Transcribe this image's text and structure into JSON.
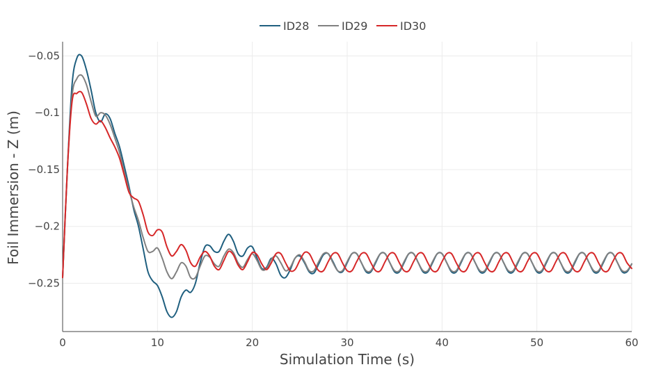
{
  "chart_data": {
    "type": "line",
    "xlabel": "Simulation Time (s)",
    "ylabel": "Foil Immersion - Z (m)",
    "xlim": [
      0,
      60
    ],
    "ylim": [
      -0.2925,
      -0.0375
    ],
    "x_ticks": [
      0,
      10,
      20,
      30,
      40,
      50,
      60
    ],
    "x_tick_labels": [
      "0",
      "10",
      "20",
      "30",
      "40",
      "50",
      "60"
    ],
    "y_ticks": [
      -0.05,
      -0.1,
      -0.15,
      -0.2,
      -0.25
    ],
    "y_tick_labels": [
      "−0.05",
      "−0.1",
      "−0.15",
      "−0.2",
      "−0.25"
    ],
    "grid": true,
    "legend_position": "top-center",
    "series": [
      {
        "name": "ID28",
        "color": "#1f5f7f",
        "x": [
          0,
          0.5,
          1.0,
          1.5,
          2.0,
          2.5,
          3.0,
          3.5,
          4.0,
          4.5,
          5.0,
          5.5,
          6.0,
          6.5,
          7.0,
          7.5,
          8.0,
          8.5,
          9.0,
          9.5,
          10.0,
          10.5,
          11.0,
          11.5,
          12.0,
          12.5,
          13.0,
          13.5,
          14.0,
          14.5,
          15.0,
          15.5,
          16.0,
          16.5,
          17.0,
          17.5,
          18.0,
          18.5,
          19.0,
          19.5,
          20.0,
          20.5,
          21.0,
          21.5,
          22.0,
          22.5,
          23.0,
          23.5,
          24.0,
          24.5,
          25.0,
          25.5,
          26.0,
          26.5,
          27.0,
          27.5,
          28.0,
          28.5,
          29.0,
          29.5,
          30.0,
          30.5,
          31.0,
          31.5,
          32.0,
          32.5,
          33.0,
          33.5,
          34.0,
          34.5,
          35.0,
          35.5,
          36.0,
          36.5,
          37.0,
          37.5,
          38.0,
          38.5,
          39.0,
          39.5,
          40.0,
          40.5,
          41.0,
          41.5,
          42.0,
          42.5,
          43.0,
          43.5,
          44.0,
          44.5,
          45.0,
          45.5,
          46.0,
          46.5,
          47.0,
          47.5,
          48.0,
          48.5,
          49.0,
          49.5,
          50.0,
          50.5,
          51.0,
          51.5,
          52.0,
          52.5,
          53.0,
          53.5,
          54.0,
          54.5,
          55.0,
          55.5,
          56.0,
          56.5,
          57.0,
          57.5,
          58.0,
          58.5,
          59.0,
          59.5,
          60.0
        ],
        "y": [
          -0.245,
          -0.15,
          -0.075,
          -0.052,
          -0.05,
          -0.062,
          -0.08,
          -0.1,
          -0.108,
          -0.101,
          -0.105,
          -0.118,
          -0.13,
          -0.147,
          -0.165,
          -0.185,
          -0.2,
          -0.22,
          -0.24,
          -0.248,
          -0.252,
          -0.262,
          -0.275,
          -0.28,
          -0.275,
          -0.262,
          -0.256,
          -0.258,
          -0.25,
          -0.232,
          -0.218,
          -0.217,
          -0.222,
          -0.222,
          -0.213,
          -0.207,
          -0.213,
          -0.224,
          -0.226,
          -0.219,
          -0.218,
          -0.228,
          -0.237,
          -0.236,
          -0.228,
          -0.233,
          -0.243,
          -0.245,
          -0.238,
          -0.228,
          -0.226,
          -0.232,
          -0.24,
          -0.241,
          -0.233,
          -0.225,
          -0.224,
          -0.231,
          -0.239,
          -0.24,
          -0.232,
          -0.224,
          -0.224,
          -0.232,
          -0.24,
          -0.24,
          -0.232,
          -0.224,
          -0.224,
          -0.232,
          -0.24,
          -0.24,
          -0.232,
          -0.224,
          -0.224,
          -0.232,
          -0.24,
          -0.24,
          -0.232,
          -0.224,
          -0.224,
          -0.232,
          -0.24,
          -0.24,
          -0.232,
          -0.224,
          -0.224,
          -0.232,
          -0.24,
          -0.24,
          -0.232,
          -0.224,
          -0.224,
          -0.232,
          -0.24,
          -0.24,
          -0.232,
          -0.224,
          -0.224,
          -0.232,
          -0.24,
          -0.24,
          -0.232,
          -0.224,
          -0.224,
          -0.232,
          -0.24,
          -0.24,
          -0.232,
          -0.224,
          -0.224,
          -0.232,
          -0.24,
          -0.24,
          -0.232,
          -0.224,
          -0.224,
          -0.232,
          -0.24,
          -0.24,
          -0.233
        ]
      },
      {
        "name": "ID29",
        "color": "#808080",
        "x": [
          0,
          0.5,
          1.0,
          1.5,
          2.0,
          2.5,
          3.0,
          3.5,
          4.0,
          4.5,
          5.0,
          5.5,
          6.0,
          6.5,
          7.0,
          7.5,
          8.0,
          8.5,
          9.0,
          9.5,
          10.0,
          10.5,
          11.0,
          11.5,
          12.0,
          12.5,
          13.0,
          13.5,
          14.0,
          14.5,
          15.0,
          15.5,
          16.0,
          16.5,
          17.0,
          17.5,
          18.0,
          18.5,
          19.0,
          19.5,
          20.0,
          20.5,
          21.0,
          21.5,
          22.0,
          22.5,
          23.0,
          23.5,
          24.0,
          24.5,
          25.0,
          25.5,
          26.0,
          26.5,
          27.0,
          27.5,
          28.0,
          28.5,
          29.0,
          29.5,
          30.0,
          30.5,
          31.0,
          31.5,
          32.0,
          32.5,
          33.0,
          33.5,
          34.0,
          34.5,
          35.0,
          35.5,
          36.0,
          36.5,
          37.0,
          37.5,
          38.0,
          38.5,
          39.0,
          39.5,
          40.0,
          40.5,
          41.0,
          41.5,
          42.0,
          42.5,
          43.0,
          43.5,
          44.0,
          44.5,
          45.0,
          45.5,
          46.0,
          46.5,
          47.0,
          47.5,
          48.0,
          48.5,
          49.0,
          49.5,
          50.0,
          50.5,
          51.0,
          51.5,
          52.0,
          52.5,
          53.0,
          53.5,
          54.0,
          54.5,
          55.0,
          55.5,
          56.0,
          56.5,
          57.0,
          57.5,
          58.0,
          58.5,
          59.0,
          59.5,
          60.0
        ],
        "y": [
          -0.245,
          -0.15,
          -0.085,
          -0.07,
          -0.067,
          -0.075,
          -0.09,
          -0.103,
          -0.1,
          -0.102,
          -0.11,
          -0.122,
          -0.135,
          -0.152,
          -0.168,
          -0.183,
          -0.195,
          -0.21,
          -0.222,
          -0.222,
          -0.219,
          -0.228,
          -0.24,
          -0.246,
          -0.24,
          -0.232,
          -0.235,
          -0.245,
          -0.245,
          -0.235,
          -0.226,
          -0.227,
          -0.233,
          -0.235,
          -0.226,
          -0.22,
          -0.223,
          -0.232,
          -0.236,
          -0.229,
          -0.224,
          -0.23,
          -0.238,
          -0.237,
          -0.229,
          -0.226,
          -0.232,
          -0.239,
          -0.236,
          -0.228,
          -0.225,
          -0.231,
          -0.239,
          -0.239,
          -0.231,
          -0.224,
          -0.224,
          -0.232,
          -0.239,
          -0.239,
          -0.231,
          -0.224,
          -0.224,
          -0.232,
          -0.239,
          -0.239,
          -0.231,
          -0.224,
          -0.224,
          -0.232,
          -0.239,
          -0.239,
          -0.231,
          -0.224,
          -0.224,
          -0.232,
          -0.239,
          -0.239,
          -0.231,
          -0.224,
          -0.224,
          -0.232,
          -0.239,
          -0.239,
          -0.231,
          -0.224,
          -0.224,
          -0.232,
          -0.239,
          -0.239,
          -0.231,
          -0.224,
          -0.224,
          -0.232,
          -0.239,
          -0.239,
          -0.231,
          -0.224,
          -0.224,
          -0.232,
          -0.239,
          -0.239,
          -0.231,
          -0.224,
          -0.224,
          -0.232,
          -0.239,
          -0.239,
          -0.231,
          -0.224,
          -0.224,
          -0.232,
          -0.239,
          -0.239,
          -0.231,
          -0.224,
          -0.224,
          -0.232,
          -0.239,
          -0.239,
          -0.233
        ]
      },
      {
        "name": "ID30",
        "color": "#d62728",
        "x": [
          0,
          0.5,
          1.0,
          1.5,
          2.0,
          2.5,
          3.0,
          3.5,
          4.0,
          4.5,
          5.0,
          5.5,
          6.0,
          6.5,
          7.0,
          7.5,
          8.0,
          8.5,
          9.0,
          9.5,
          10.0,
          10.5,
          11.0,
          11.5,
          12.0,
          12.5,
          13.0,
          13.5,
          14.0,
          14.5,
          15.0,
          15.5,
          16.0,
          16.5,
          17.0,
          17.5,
          18.0,
          18.5,
          19.0,
          19.5,
          20.0,
          20.5,
          21.0,
          21.5,
          22.0,
          22.5,
          23.0,
          23.5,
          24.0,
          24.5,
          25.0,
          25.5,
          26.0,
          26.5,
          27.0,
          27.5,
          28.0,
          28.5,
          29.0,
          29.5,
          30.0,
          30.5,
          31.0,
          31.5,
          32.0,
          32.5,
          33.0,
          33.5,
          34.0,
          34.5,
          35.0,
          35.5,
          36.0,
          36.5,
          37.0,
          37.5,
          38.0,
          38.5,
          39.0,
          39.5,
          40.0,
          40.5,
          41.0,
          41.5,
          42.0,
          42.5,
          43.0,
          43.5,
          44.0,
          44.5,
          45.0,
          45.5,
          46.0,
          46.5,
          47.0,
          47.5,
          48.0,
          48.5,
          49.0,
          49.5,
          50.0,
          50.5,
          51.0,
          51.5,
          52.0,
          52.5,
          53.0,
          53.5,
          54.0,
          54.5,
          55.0,
          55.5,
          56.0,
          56.5,
          57.0,
          57.5,
          58.0,
          58.5,
          59.0,
          59.5,
          60.0
        ],
        "y": [
          -0.245,
          -0.15,
          -0.09,
          -0.083,
          -0.082,
          -0.092,
          -0.105,
          -0.11,
          -0.107,
          -0.113,
          -0.122,
          -0.13,
          -0.14,
          -0.155,
          -0.17,
          -0.175,
          -0.178,
          -0.19,
          -0.205,
          -0.208,
          -0.203,
          -0.205,
          -0.218,
          -0.226,
          -0.222,
          -0.216,
          -0.221,
          -0.232,
          -0.235,
          -0.227,
          -0.222,
          -0.226,
          -0.235,
          -0.238,
          -0.23,
          -0.222,
          -0.225,
          -0.234,
          -0.238,
          -0.231,
          -0.223,
          -0.225,
          -0.233,
          -0.238,
          -0.232,
          -0.224,
          -0.224,
          -0.232,
          -0.239,
          -0.238,
          -0.23,
          -0.223,
          -0.224,
          -0.232,
          -0.239,
          -0.239,
          -0.231,
          -0.224,
          -0.224,
          -0.232,
          -0.239,
          -0.239,
          -0.231,
          -0.224,
          -0.224,
          -0.232,
          -0.239,
          -0.239,
          -0.231,
          -0.224,
          -0.224,
          -0.232,
          -0.239,
          -0.239,
          -0.231,
          -0.224,
          -0.224,
          -0.232,
          -0.239,
          -0.239,
          -0.231,
          -0.224,
          -0.224,
          -0.232,
          -0.239,
          -0.239,
          -0.231,
          -0.224,
          -0.224,
          -0.232,
          -0.239,
          -0.239,
          -0.231,
          -0.224,
          -0.224,
          -0.232,
          -0.239,
          -0.239,
          -0.231,
          -0.224,
          -0.224,
          -0.232,
          -0.239,
          -0.239,
          -0.231,
          -0.224,
          -0.224,
          -0.232,
          -0.239,
          -0.239,
          -0.231,
          -0.224,
          -0.224,
          -0.232,
          -0.239,
          -0.239,
          -0.231,
          -0.224,
          -0.224,
          -0.232,
          -0.237
        ]
      }
    ]
  }
}
